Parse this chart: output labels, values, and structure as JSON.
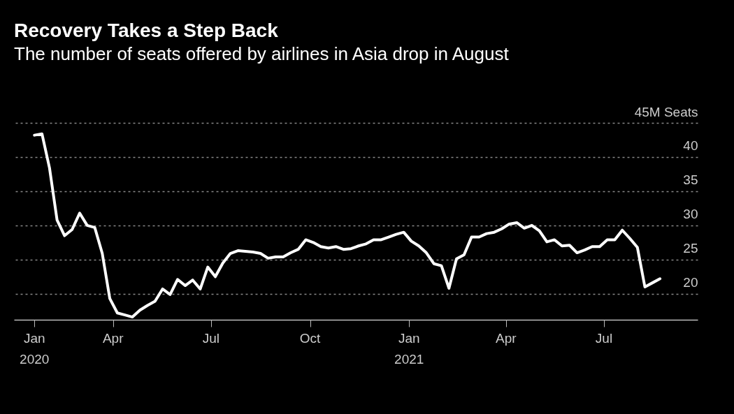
{
  "chart_data": {
    "type": "line",
    "title": "Recovery Takes a Step Back",
    "subtitle": "The number of seats offered by airlines in Asia drop in August",
    "x": [
      "2020-01-19",
      "2020-01-26",
      "2020-02-02",
      "2020-02-09",
      "2020-02-16",
      "2020-02-23",
      "2020-03-01",
      "2020-03-08",
      "2020-03-15",
      "2020-03-22",
      "2020-03-29",
      "2020-04-05",
      "2020-04-12",
      "2020-04-19",
      "2020-04-26",
      "2020-05-03",
      "2020-05-10",
      "2020-05-17",
      "2020-05-24",
      "2020-05-31",
      "2020-06-07",
      "2020-06-14",
      "2020-06-21",
      "2020-06-28",
      "2020-07-05",
      "2020-07-12",
      "2020-07-19",
      "2020-07-26",
      "2020-08-02",
      "2020-08-09",
      "2020-08-16",
      "2020-08-23",
      "2020-08-30",
      "2020-09-06",
      "2020-09-13",
      "2020-09-20",
      "2020-09-27",
      "2020-10-04",
      "2020-10-11",
      "2020-10-18",
      "2020-10-25",
      "2020-11-01",
      "2020-11-08",
      "2020-11-15",
      "2020-11-22",
      "2020-11-29",
      "2020-12-06",
      "2020-12-13",
      "2020-12-20",
      "2020-12-27",
      "2021-01-03",
      "2021-01-10",
      "2021-01-17",
      "2021-01-24",
      "2021-01-31",
      "2021-02-07",
      "2021-02-14",
      "2021-02-21",
      "2021-02-28",
      "2021-03-07",
      "2021-03-14",
      "2021-03-21",
      "2021-03-28",
      "2021-04-04",
      "2021-04-11",
      "2021-04-18",
      "2021-04-25",
      "2021-05-02",
      "2021-05-09",
      "2021-05-16",
      "2021-05-23",
      "2021-05-30",
      "2021-06-06",
      "2021-06-13",
      "2021-06-20",
      "2021-06-27",
      "2021-07-04",
      "2021-07-11",
      "2021-07-18",
      "2021-07-25",
      "2021-08-01",
      "2021-08-08",
      "2021-08-15",
      "2021-08-22"
    ],
    "series": [
      {
        "color": "#ffffff",
        "values": [
          43.2,
          43.4,
          38.4,
          30.8,
          28.5,
          29.4,
          31.8,
          30.0,
          29.7,
          25.9,
          19.3,
          17.2,
          16.9,
          16.6,
          17.6,
          18.3,
          18.9,
          20.7,
          19.9,
          22.1,
          21.2,
          22.0,
          20.7,
          23.9,
          22.5,
          24.5,
          25.9,
          26.3,
          26.2,
          26.1,
          25.9,
          25.2,
          25.4,
          25.4,
          26.0,
          26.5,
          27.9,
          27.5,
          26.9,
          26.7,
          26.9,
          26.5,
          26.6,
          27.0,
          27.3,
          27.9,
          27.9,
          28.3,
          28.7,
          29.0,
          27.7,
          27.0,
          26.0,
          24.4,
          24.1,
          20.8,
          25.1,
          25.7,
          28.3,
          28.3,
          28.8,
          29.0,
          29.5,
          30.2,
          30.4,
          29.6,
          30.0,
          29.2,
          27.6,
          27.9,
          27.0,
          27.1,
          26.0,
          26.4,
          26.9,
          26.9,
          27.9,
          27.9,
          29.3,
          28.1,
          26.8,
          21.0,
          21.6,
          22.2
        ]
      }
    ],
    "xlim": [
      "2019-12-31",
      "2021-09-26"
    ],
    "xticks": [
      {
        "value": "2020-01-19",
        "label": "Jan\n2020"
      },
      {
        "value": "2020-04-01",
        "label": "Apr"
      },
      {
        "value": "2020-07-01",
        "label": "Jul"
      },
      {
        "value": "2020-10-01",
        "label": "Oct"
      },
      {
        "value": "2021-01-01",
        "label": "Jan\n2021"
      },
      {
        "value": "2021-04-01",
        "label": "Apr"
      },
      {
        "value": "2021-07-01",
        "label": "Jul"
      }
    ],
    "ylim": [
      16.2,
      45
    ],
    "yticks": [
      20,
      25,
      30,
      35,
      40,
      {
        "value": 45,
        "label": "45M Seats"
      }
    ],
    "grid": "y",
    "legend": false,
    "line_style": "solid",
    "marker": "none"
  }
}
